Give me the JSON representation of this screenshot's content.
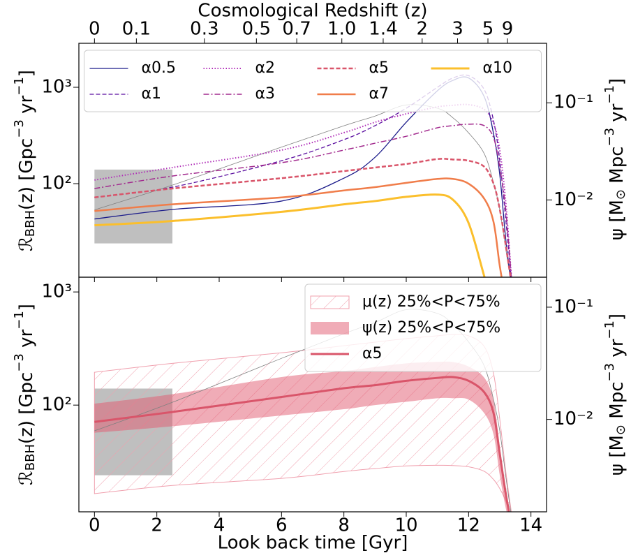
{
  "chart_data": [
    {
      "type": "line",
      "x2label": "Cosmological Redshift (z)",
      "x2ticks": [
        0,
        0.1,
        0.3,
        0.5,
        0.7,
        {
          "value": 1.0,
          "label": "1.0"
        },
        1.4,
        2,
        3,
        5,
        9
      ],
      "ylabel": [
        "ℛ",
        "BBH",
        "(z) [Gpc",
        "−3",
        " yr",
        "−1",
        "]"
      ],
      "y2label": [
        "ψ [M",
        "⊙",
        " Mpc",
        "−3",
        " yr",
        "−1",
        "]"
      ],
      "xlim": [
        -0.5,
        14.5
      ],
      "xticks": [
        0,
        2,
        4,
        6,
        8,
        10,
        12,
        14
      ],
      "ylim": [
        10.7,
        2860
      ],
      "yticks": [
        {
          "value": 100,
          "label": "10²"
        },
        {
          "value": 1000,
          "label": "10³"
        }
      ],
      "y2lim": [
        0.0016,
        0.41
      ],
      "y2ticks": [
        {
          "value": 0.01,
          "label": "10⁻²"
        },
        {
          "value": 0.1,
          "label": "10⁻¹"
        }
      ],
      "log_scale": true,
      "legend": "upper center",
      "legend_columns": 4,
      "shaded_region": {
        "x": [
          0,
          2.5
        ],
        "y": [
          24,
          140
        ],
        "color": "#bfbfbf"
      },
      "x": [
        0,
        2.5,
        6,
        8,
        9,
        10,
        11,
        11.5,
        12,
        12.5,
        12.8,
        13,
        13.2,
        13.4
      ],
      "series": [
        {
          "color": "#808080",
          "linestyle": "solid",
          "linewidth": 0.8,
          "axis": "y2",
          "values": [
            0.0079,
            0.0142,
            0.035,
            0.058,
            0.073,
            0.095,
            0.088,
            0.07,
            0.049,
            0.03,
            0.015,
            0.0079,
            0.003,
            0.0012
          ]
        },
        {
          "name": "α0.5",
          "color": "#1b1b8a",
          "linestyle": "solid",
          "linewidth": 1.3,
          "values": [
            43,
            54,
            66,
            114,
            188,
            434,
            920,
            1180,
            1250,
            800,
            330,
            124,
            25,
            8
          ]
        },
        {
          "name": "α1",
          "color": "#5b0fa0",
          "linestyle": "dashed",
          "linewidth": 1.3,
          "values": [
            72,
            92,
            173,
            286,
            400,
            606,
            1000,
            1250,
            1320,
            950,
            450,
            173,
            40,
            8
          ]
        },
        {
          "name": "α2",
          "color": "#b02fb8",
          "linestyle": "dotted",
          "linewidth": 2,
          "values": [
            109,
            147,
            223,
            338,
            434,
            530,
            626,
            650,
            660,
            590,
            420,
            223,
            60,
            8
          ]
        },
        {
          "name": "α3",
          "color": "#a22a8e",
          "linestyle": "dashdot",
          "linewidth": 1.5,
          "values": [
            89,
            120,
            165,
            223,
            263,
            310,
            380,
            400,
            414,
            400,
            300,
            147,
            50,
            8
          ]
        },
        {
          "name": "α5",
          "color": "#d9556a",
          "linestyle": "dashed",
          "linewidth": 2.5,
          "values": [
            72,
            89,
            114,
            135,
            147,
            160,
            180,
            178,
            173,
            150,
            100,
            54,
            22,
            8
          ]
        },
        {
          "name": "α7",
          "color": "#f07d4a",
          "linestyle": "solid",
          "linewidth": 2.5,
          "values": [
            52,
            61,
            72,
            85,
            92,
            102,
            112,
            112,
            100,
            70,
            40,
            14,
            6,
            3
          ]
        },
        {
          "name": "α10",
          "color": "#fbbf2c",
          "linestyle": "solid",
          "linewidth": 3,
          "values": [
            37,
            41,
            51,
            61,
            66,
            73,
            77,
            68,
            39,
            11,
            5,
            3,
            2,
            1.5
          ]
        }
      ]
    },
    {
      "type": "line",
      "xlabel": "Look back time [Gyr]",
      "ylabel": [
        "ℛ",
        "BBH",
        "(z) [Gpc",
        "−3",
        " yr",
        "−1",
        "]"
      ],
      "y2label": [
        "ψ [M",
        "⊙",
        " Mpc",
        "−3",
        " yr",
        "−1",
        "]"
      ],
      "xlim": [
        -0.5,
        14.5
      ],
      "xticks": [
        0,
        2,
        4,
        6,
        8,
        10,
        12,
        14
      ],
      "ylim": [
        11.4,
        1350
      ],
      "yticks": [
        {
          "value": 100,
          "label": "10²"
        },
        {
          "value": 1000,
          "label": "10³"
        }
      ],
      "y2lim": [
        0.0015,
        0.185
      ],
      "y2ticks": [
        {
          "value": 0.01,
          "label": "10⁻²"
        },
        {
          "value": 0.1,
          "label": "10⁻¹"
        }
      ],
      "log_scale": true,
      "legend": "upper right",
      "legend_columns": 1,
      "shaded_region": {
        "x": [
          0,
          2.5
        ],
        "y": [
          24,
          140
        ],
        "color": "#bfbfbf"
      },
      "x": [
        0,
        2.5,
        6,
        8,
        9,
        10,
        11,
        11.5,
        12,
        12.5,
        12.8,
        13,
        13.2,
        13.4
      ],
      "series": [
        {
          "name": "μ(z) 25%<P<75%",
          "color": "#f0a0ae",
          "hatch": true,
          "upper": [
            195,
            234,
            290,
            335,
            360,
            387,
            410,
            420,
            410,
            330,
            190,
            75,
            25,
            10
          ],
          "lower": [
            16.5,
            19.5,
            22.5,
            25.9,
            27.5,
            29,
            29.4,
            29.2,
            28.5,
            26,
            22,
            18.3,
            14,
            9
          ]
        },
        {
          "name": "ψ(z) 25%<P<75%",
          "color": "#e25a70",
          "alpha": 0.5,
          "upper": [
            103,
            125,
            177,
            200,
            217,
            234,
            241,
            240,
            219,
            175,
            110,
            43,
            18,
            9
          ],
          "lower": [
            57,
            65,
            81,
            92,
            100,
            107,
            115,
            115,
            112,
            85,
            55,
            24,
            12,
            7
          ]
        },
        {
          "color": "#808080",
          "linestyle": "solid",
          "linewidth": 0.8,
          "axis": "y2",
          "values": [
            0.0079,
            0.0142,
            0.035,
            0.058,
            0.073,
            0.095,
            0.088,
            0.07,
            0.049,
            0.03,
            0.015,
            0.0079,
            0.003,
            0.0012
          ]
        },
        {
          "name": "α5",
          "color": "#d9556a",
          "linestyle": "solid",
          "linewidth": 3,
          "values": [
            71,
            87,
            118,
            141,
            150,
            164,
            174,
            177,
            164,
            130,
            85,
            37,
            16,
            8
          ]
        }
      ]
    }
  ]
}
